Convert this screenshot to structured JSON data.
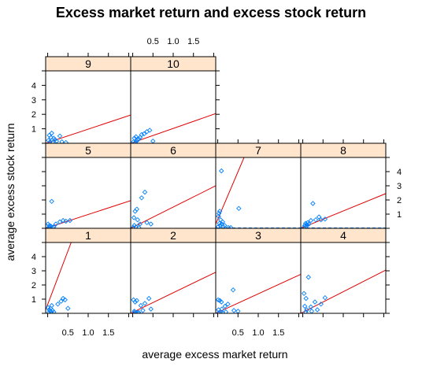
{
  "chart_data": {
    "type": "scatter",
    "title": "Excess market return and excess stock return",
    "xlabel": "average excess market return",
    "ylabel": "average excess stock return",
    "x_ticks": [
      "0.5",
      "1.0",
      "1.5"
    ],
    "y_ticks": [
      "1",
      "2",
      "3",
      "4"
    ],
    "xlim": [
      -0.05,
      2.05
    ],
    "ylim": [
      0,
      5
    ],
    "colors": {
      "strip": "#ffe5cc",
      "points": "#0080ff",
      "line": "#e00000",
      "hline": "#0080ff"
    },
    "panels": [
      {
        "label": "1",
        "points": [
          [
            0.01,
            0.4
          ],
          [
            0.03,
            0.05
          ],
          [
            0.04,
            0.25
          ],
          [
            0.06,
            0.15
          ],
          [
            0.07,
            0.35
          ],
          [
            0.09,
            0.08
          ],
          [
            0.1,
            0.55
          ],
          [
            0.12,
            0.2
          ],
          [
            0.15,
            0.1
          ],
          [
            0.25,
            0.65
          ],
          [
            0.33,
            0.85
          ],
          [
            0.38,
            1.05
          ],
          [
            0.43,
            0.95
          ],
          [
            0.5,
            0.35
          ]
        ],
        "line": [
          [
            -0.05,
            0.25
          ],
          [
            0.58,
            5.0
          ]
        ]
      },
      {
        "label": "2",
        "points": [
          [
            0.02,
            0.95
          ],
          [
            0.04,
            0.15
          ],
          [
            0.05,
            0.1
          ],
          [
            0.06,
            0.8
          ],
          [
            0.08,
            0.05
          ],
          [
            0.1,
            0.9
          ],
          [
            0.12,
            0.05
          ],
          [
            0.15,
            0.05
          ],
          [
            0.2,
            0.55
          ],
          [
            0.25,
            0.2
          ],
          [
            0.3,
            0.7
          ],
          [
            0.4,
            1.05
          ],
          [
            0.45,
            0.3
          ]
        ],
        "line": [
          [
            -0.05,
            0.0
          ],
          [
            2.05,
            2.9
          ]
        ]
      },
      {
        "label": "3",
        "points": [
          [
            0.01,
            0.95
          ],
          [
            0.02,
            0.25
          ],
          [
            0.03,
            0.05
          ],
          [
            0.05,
            0.9
          ],
          [
            0.07,
            0.1
          ],
          [
            0.09,
            0.8
          ],
          [
            0.1,
            0.3
          ],
          [
            0.12,
            0.05
          ],
          [
            0.18,
            0.5
          ],
          [
            0.2,
            0.1
          ],
          [
            0.25,
            0.65
          ],
          [
            0.38,
            1.65
          ],
          [
            0.4,
            0.2
          ],
          [
            0.5,
            0.15
          ]
        ],
        "line": [
          [
            -0.05,
            0.0
          ],
          [
            2.05,
            2.75
          ]
        ]
      },
      {
        "label": "4",
        "points": [
          [
            0.03,
            1.4
          ],
          [
            0.05,
            0.5
          ],
          [
            0.07,
            0.1
          ],
          [
            0.08,
            1.05
          ],
          [
            0.1,
            0.25
          ],
          [
            0.14,
            2.55
          ],
          [
            0.2,
            0.45
          ],
          [
            0.22,
            0.15
          ],
          [
            0.3,
            0.8
          ],
          [
            0.36,
            0.25
          ],
          [
            0.45,
            0.65
          ],
          [
            0.55,
            1.1
          ]
        ],
        "line": [
          [
            -0.05,
            0.0
          ],
          [
            2.05,
            3.05
          ]
        ]
      },
      {
        "label": "5",
        "points": [
          [
            0.01,
            0.3
          ],
          [
            0.02,
            0.05
          ],
          [
            0.04,
            0.2
          ],
          [
            0.05,
            0.1
          ],
          [
            0.08,
            0.15
          ],
          [
            0.1,
            1.9
          ],
          [
            0.12,
            0.05
          ],
          [
            0.15,
            0.1
          ],
          [
            0.2,
            0.3
          ],
          [
            0.3,
            0.45
          ],
          [
            0.38,
            0.55
          ],
          [
            0.45,
            0.5
          ],
          [
            0.55,
            0.55
          ]
        ],
        "line": [
          [
            -0.05,
            0.0
          ],
          [
            2.05,
            1.95
          ]
        ]
      },
      {
        "label": "6",
        "points": [
          [
            0.01,
            0.05
          ],
          [
            0.03,
            0.75
          ],
          [
            0.04,
            0.2
          ],
          [
            0.06,
            1.2
          ],
          [
            0.08,
            0.1
          ],
          [
            0.1,
            1.35
          ],
          [
            0.12,
            0.6
          ],
          [
            0.15,
            0.05
          ],
          [
            0.18,
            0.3
          ],
          [
            0.22,
            2.15
          ],
          [
            0.3,
            2.55
          ],
          [
            0.35,
            0.4
          ],
          [
            0.45,
            0.3
          ]
        ],
        "line": [
          [
            -0.05,
            0.0
          ],
          [
            2.05,
            3.0
          ]
        ]
      },
      {
        "label": "7",
        "points": [
          [
            0.01,
            0.1
          ],
          [
            0.02,
            0.85
          ],
          [
            0.03,
            1.05
          ],
          [
            0.04,
            0.35
          ],
          [
            0.05,
            1.2
          ],
          [
            0.06,
            0.2
          ],
          [
            0.07,
            0.6
          ],
          [
            0.09,
            4.05
          ],
          [
            0.1,
            0.3
          ],
          [
            0.12,
            0.45
          ],
          [
            0.14,
            0.1
          ],
          [
            0.17,
            0.2
          ],
          [
            0.26,
            0.05
          ],
          [
            0.32,
            0.05
          ],
          [
            0.52,
            1.4
          ]
        ],
        "line": [
          [
            -0.05,
            0.3
          ],
          [
            0.65,
            5.0
          ]
        ],
        "hline": true
      },
      {
        "label": "8",
        "points": [
          [
            0.02,
            0.05
          ],
          [
            0.05,
            0.2
          ],
          [
            0.07,
            0.35
          ],
          [
            0.09,
            0.15
          ],
          [
            0.1,
            0.25
          ],
          [
            0.12,
            0.4
          ],
          [
            0.15,
            0.3
          ],
          [
            0.2,
            0.55
          ],
          [
            0.25,
            1.75
          ],
          [
            0.32,
            0.6
          ],
          [
            0.4,
            0.8
          ],
          [
            0.45,
            0.6
          ],
          [
            0.55,
            0.65
          ]
        ],
        "line": [
          [
            -0.05,
            0.0
          ],
          [
            2.05,
            2.45
          ]
        ],
        "hline": true
      },
      {
        "label": "9",
        "points": [
          [
            0.02,
            0.2
          ],
          [
            0.04,
            0.55
          ],
          [
            0.06,
            0.1
          ],
          [
            0.08,
            0.4
          ],
          [
            0.1,
            0.7
          ],
          [
            0.12,
            0.05
          ],
          [
            0.15,
            0.35
          ],
          [
            0.18,
            0.25
          ],
          [
            0.22,
            0.15
          ],
          [
            0.3,
            0.5
          ],
          [
            0.35,
            0.1
          ],
          [
            0.45,
            0.05
          ]
        ],
        "line": [
          [
            -0.05,
            0.0
          ],
          [
            2.05,
            1.95
          ]
        ]
      },
      {
        "label": "10",
        "points": [
          [
            0.02,
            0.1
          ],
          [
            0.04,
            0.35
          ],
          [
            0.06,
            0.05
          ],
          [
            0.08,
            0.45
          ],
          [
            0.1,
            0.15
          ],
          [
            0.12,
            0.25
          ],
          [
            0.15,
            0.3
          ],
          [
            0.18,
            0.4
          ],
          [
            0.22,
            0.6
          ],
          [
            0.28,
            0.65
          ],
          [
            0.35,
            0.8
          ],
          [
            0.42,
            0.9
          ],
          [
            0.5,
            0.15
          ]
        ],
        "line": [
          [
            -0.05,
            0.0
          ],
          [
            2.05,
            2.05
          ]
        ]
      }
    ]
  }
}
